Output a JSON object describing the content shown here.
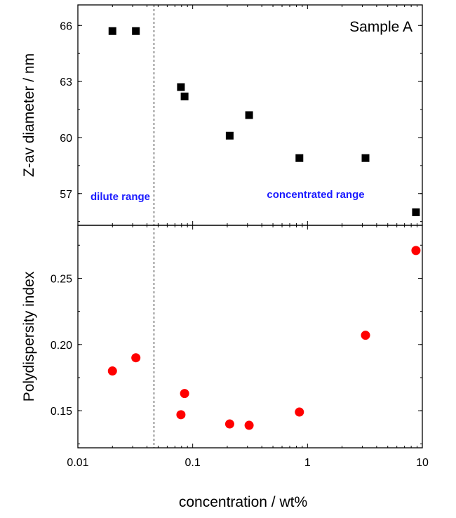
{
  "chart_data": [
    {
      "type": "scatter",
      "panel": "top",
      "annotation": "Sample A",
      "region_labels": [
        "dilute range",
        "concentrated range"
      ],
      "ylabel": "Z-av diameter / nm",
      "xscale": "log",
      "xlim": [
        0.01,
        10
      ],
      "ylim": [
        55.3,
        67.1
      ],
      "yticks": [
        "57",
        "60",
        "63",
        "66"
      ],
      "divider_x": 0.046,
      "marker": "square",
      "color": "#000000",
      "label_color": "#1a1aff",
      "x": [
        0.02,
        0.032,
        0.079,
        0.085,
        0.21,
        0.31,
        0.85,
        3.2,
        8.8
      ],
      "y": [
        65.7,
        65.7,
        62.7,
        62.2,
        60.1,
        61.2,
        58.9,
        58.9,
        56.0
      ]
    },
    {
      "type": "scatter",
      "panel": "bottom",
      "ylabel": "Polydispersity index",
      "xlabel": "concentration / wt%",
      "xscale": "log",
      "xlim": [
        0.01,
        10
      ],
      "ylim": [
        0.122,
        0.29
      ],
      "yticks": [
        "0.15",
        "0.20",
        "0.25"
      ],
      "xticks": [
        "0.01",
        "0.1",
        "1",
        "10"
      ],
      "divider_x": 0.046,
      "marker": "circle",
      "color": "#ff0000",
      "x": [
        0.02,
        0.032,
        0.079,
        0.085,
        0.21,
        0.31,
        0.85,
        3.2,
        8.8
      ],
      "y": [
        0.18,
        0.19,
        0.147,
        0.163,
        0.14,
        0.139,
        0.149,
        0.207,
        0.271
      ]
    }
  ]
}
